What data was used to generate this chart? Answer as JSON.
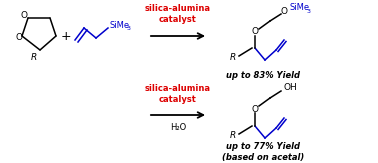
{
  "bg_color": "#ffffff",
  "black": "#000000",
  "red": "#dd0000",
  "blue": "#0000cc",
  "catalyst_top": "silica-alumina\ncatalyst",
  "catalyst_bottom": "silica-alumina\ncatalyst",
  "h2o": "H₂O",
  "yield_top": "up to 83% Yield",
  "yield_bottom": "up to 77% Yield\n(based on acetal)",
  "figsize": [
    3.78,
    1.63
  ],
  "dpi": 100
}
